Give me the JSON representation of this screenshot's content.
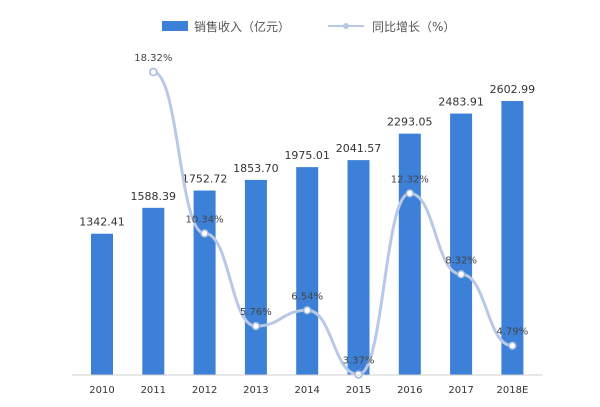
{
  "chart_data": {
    "type": "bar",
    "categories": [
      "2010",
      "2011",
      "2012",
      "2013",
      "2014",
      "2015",
      "2016",
      "2017",
      "2018E"
    ],
    "series": [
      {
        "name": "销售收入（亿元）",
        "type": "bar",
        "color": "#3d80d8",
        "values": [
          1342.41,
          1588.39,
          1752.72,
          1853.7,
          1975.01,
          2041.57,
          2293.05,
          2483.91,
          2602.99
        ],
        "labels": [
          "1342.41",
          "1588.39",
          "1752.72",
          "1853.70",
          "1975.01",
          "2041.57",
          "2293.05",
          "2483.91",
          "2602.99"
        ]
      },
      {
        "name": "同比增长（%）",
        "type": "line",
        "color": "#b7c9e6",
        "values": [
          null,
          18.32,
          10.34,
          5.76,
          6.54,
          3.37,
          12.32,
          8.32,
          4.79
        ],
        "labels": [
          "",
          "18.32%",
          "10.34%",
          "5.76%",
          "6.54%",
          "3.37%",
          "12.32%",
          "8.32%",
          "4.79%"
        ]
      }
    ],
    "legend_position": "top",
    "grid": false
  }
}
